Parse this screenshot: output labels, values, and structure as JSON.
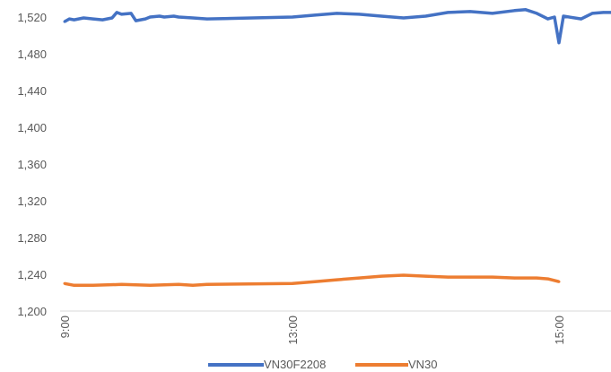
{
  "chart_data": {
    "type": "line",
    "title": "",
    "xlabel": "",
    "ylabel": "",
    "ylim": [
      1200,
      1535
    ],
    "yticks": [
      1200,
      1240,
      1280,
      1320,
      1360,
      1400,
      1440,
      1480,
      1520
    ],
    "ytick_labels": [
      "1,200",
      "1,240",
      "1,280",
      "1,320",
      "1,360",
      "1,400",
      "1,440",
      "1,480",
      "1,520"
    ],
    "xlim": [
      "9:00",
      "15:30"
    ],
    "xticks": [
      "9:00",
      "13:00",
      "15:00"
    ],
    "grid": false,
    "legend_position": "bottom",
    "series": [
      {
        "name": "VN30F2208",
        "color": "#4472C4",
        "x": [
          "9:00",
          "9:05",
          "9:10",
          "9:20",
          "9:30",
          "9:40",
          "9:50",
          "9:55",
          "10:00",
          "10:10",
          "10:15",
          "10:25",
          "10:30",
          "10:40",
          "10:45",
          "10:55",
          "11:00",
          "11:15",
          "11:30",
          "13:00",
          "13:10",
          "13:20",
          "13:30",
          "13:40",
          "13:50",
          "14:00",
          "14:10",
          "14:20",
          "14:30",
          "14:40",
          "14:45",
          "14:50",
          "14:55",
          "14:58",
          "15:00",
          "15:02",
          "15:10",
          "15:15",
          "15:20",
          "15:30"
        ],
        "values": [
          1515,
          1518,
          1517,
          1519,
          1518,
          1517,
          1519,
          1525,
          1523,
          1524,
          1516,
          1518,
          1520,
          1521,
          1520,
          1521,
          1520,
          1519,
          1518,
          1520,
          1522,
          1524,
          1523,
          1521,
          1519,
          1521,
          1525,
          1526,
          1524,
          1527,
          1528,
          1524,
          1518,
          1520,
          1492,
          1521,
          1518,
          1524,
          1525,
          1525
        ]
      },
      {
        "name": "VN30",
        "color": "#ED7D31",
        "x": [
          "9:00",
          "9:10",
          "9:30",
          "10:00",
          "10:30",
          "11:00",
          "11:15",
          "11:30",
          "13:00",
          "13:10",
          "13:20",
          "13:30",
          "13:40",
          "13:50",
          "14:00",
          "14:10",
          "14:20",
          "14:30",
          "14:40",
          "14:50",
          "14:55",
          "15:00"
        ],
        "values": [
          1230,
          1228,
          1228,
          1229,
          1228,
          1229,
          1228,
          1229,
          1230,
          1232,
          1234,
          1236,
          1238,
          1239,
          1238,
          1237,
          1237,
          1237,
          1236,
          1236,
          1235,
          1232
        ]
      }
    ]
  }
}
